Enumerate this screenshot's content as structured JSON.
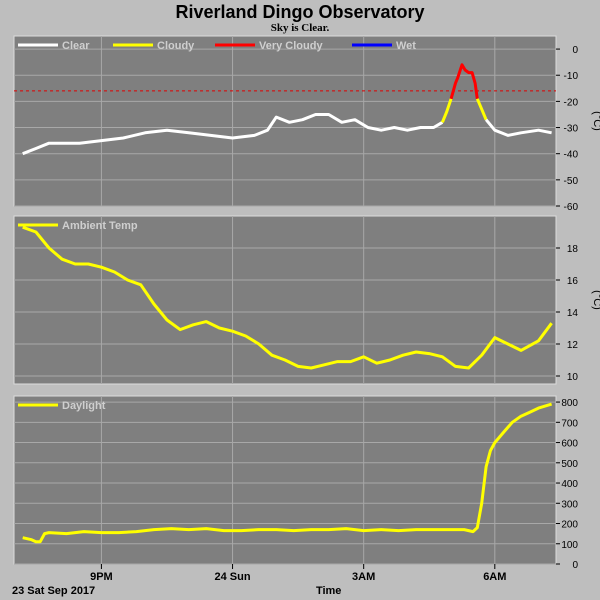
{
  "title": "Riverland Dingo Observatory",
  "subtitle": "Sky is Clear.",
  "xaxis": {
    "label": "Time",
    "date_label": "23 Sat Sep 2017",
    "ticks": [
      {
        "label": "9PM",
        "hours": 0
      },
      {
        "label": "24 Sun",
        "hours": 3
      },
      {
        "label": "3AM",
        "hours": 6
      },
      {
        "label": "6AM",
        "hours": 9
      }
    ]
  },
  "colors": {
    "plot_bg": "#7f7f7f",
    "frame_bg": "#bebebe",
    "grid": "#a8a8a8",
    "clear": "#ffffff",
    "cloudy": "#ffff00",
    "very_cloudy": "#ff0000",
    "wet": "#0000ff",
    "threshold": "#e00000"
  },
  "chart_data": [
    {
      "type": "line",
      "legend": [
        {
          "name": "Clear",
          "color": "#ffffff"
        },
        {
          "name": "Cloudy",
          "color": "#ffff00"
        },
        {
          "name": "Very Cloudy",
          "color": "#ff0000"
        },
        {
          "name": "Wet",
          "color": "#0000ff"
        }
      ],
      "unit": "(°C)",
      "ylim": [
        -60,
        5
      ],
      "yticks": [
        0,
        -10,
        -20,
        -30,
        -40,
        -50,
        -60
      ],
      "threshold": -16,
      "grid": true,
      "series": [
        {
          "name": "Clear",
          "color": "#ffffff",
          "x": [
            -1.8,
            -1.5,
            -1.2,
            -0.9,
            -0.5,
            0,
            0.5,
            1,
            1.5,
            2,
            2.5,
            3,
            3.5,
            3.8,
            4.0,
            4.3,
            4.6,
            4.9,
            5.2,
            5.5,
            5.8,
            6.1,
            6.4,
            6.7,
            7.0,
            7.3,
            7.6,
            7.8
          ],
          "y": [
            -40,
            -38,
            -36,
            -36,
            -36,
            -35,
            -34,
            -32,
            -31,
            -32,
            -33,
            -34,
            -33,
            -31,
            -26,
            -28,
            -27,
            -25,
            -25,
            -28,
            -27,
            -30,
            -31,
            -30,
            -31,
            -30,
            -30,
            -28
          ]
        },
        {
          "name": "Cloudy",
          "color": "#ffff00",
          "x": [
            7.8,
            7.9,
            8.0
          ],
          "y": [
            -28,
            -24,
            -19
          ]
        },
        {
          "name": "Very Cloudy",
          "color": "#ff0000",
          "x": [
            8.0,
            8.1,
            8.15,
            8.25,
            8.32,
            8.4,
            8.48,
            8.55,
            8.6
          ],
          "y": [
            -19,
            -13,
            -11,
            -6,
            -8,
            -9,
            -9,
            -13,
            -19
          ]
        },
        {
          "name": "Cloudy",
          "color": "#ffff00",
          "x": [
            8.6,
            8.7,
            8.8
          ],
          "y": [
            -19,
            -23,
            -27
          ]
        },
        {
          "name": "Clear",
          "color": "#ffffff",
          "x": [
            8.8,
            9.0,
            9.3,
            9.6,
            10.0,
            10.3
          ],
          "y": [
            -27,
            -31,
            -33,
            -32,
            -31,
            -32
          ]
        }
      ]
    },
    {
      "type": "line",
      "legend": [
        {
          "name": "Ambient Temp",
          "color": "#ffff00"
        }
      ],
      "unit": "(°C)",
      "ylim": [
        9.5,
        20
      ],
      "yticks": [
        10,
        12,
        14,
        16,
        18
      ],
      "grid": true,
      "series": [
        {
          "name": "Ambient Temp",
          "color": "#ffff00",
          "x": [
            -1.8,
            -1.5,
            -1.2,
            -0.9,
            -0.6,
            -0.3,
            0,
            0.3,
            0.6,
            0.9,
            1.2,
            1.5,
            1.8,
            2.1,
            2.4,
            2.7,
            3.0,
            3.3,
            3.6,
            3.9,
            4.2,
            4.5,
            4.8,
            5.1,
            5.4,
            5.7,
            6.0,
            6.3,
            6.6,
            6.9,
            7.2,
            7.5,
            7.8,
            8.1,
            8.4,
            8.7,
            9.0,
            9.3,
            9.6,
            10.0,
            10.3
          ],
          "y": [
            19.3,
            19.0,
            18.0,
            17.3,
            17.0,
            17.0,
            16.8,
            16.5,
            16.0,
            15.7,
            14.5,
            13.5,
            12.9,
            13.2,
            13.4,
            13.0,
            12.8,
            12.5,
            12.0,
            11.3,
            11.0,
            10.6,
            10.5,
            10.7,
            10.9,
            10.9,
            11.2,
            10.8,
            11.0,
            11.3,
            11.5,
            11.4,
            11.2,
            10.6,
            10.5,
            11.3,
            12.4,
            12.0,
            11.6,
            12.2,
            13.3
          ]
        }
      ]
    },
    {
      "type": "line",
      "legend": [
        {
          "name": "Daylight",
          "color": "#ffff00"
        }
      ],
      "unit": "",
      "ylim": [
        0,
        830
      ],
      "yticks": [
        0,
        100,
        200,
        300,
        400,
        500,
        600,
        700,
        800
      ],
      "grid": true,
      "series": [
        {
          "name": "Daylight",
          "color": "#ffff00",
          "x": [
            -1.8,
            -1.6,
            -1.5,
            -1.4,
            -1.3,
            -1.2,
            -0.8,
            -0.4,
            0,
            0.4,
            0.8,
            1.2,
            1.6,
            2.0,
            2.4,
            2.8,
            3.2,
            3.6,
            4.0,
            4.4,
            4.8,
            5.2,
            5.6,
            6.0,
            6.4,
            6.8,
            7.2,
            7.6,
            8.0,
            8.3,
            8.5,
            8.6,
            8.7,
            8.8,
            8.9,
            9.0,
            9.2,
            9.4,
            9.6,
            9.8,
            10.0,
            10.3
          ],
          "y": [
            130,
            120,
            110,
            110,
            150,
            155,
            150,
            160,
            155,
            155,
            160,
            170,
            175,
            170,
            175,
            165,
            165,
            170,
            170,
            165,
            170,
            170,
            175,
            165,
            170,
            165,
            170,
            170,
            170,
            170,
            160,
            180,
            300,
            480,
            560,
            600,
            650,
            700,
            730,
            750,
            770,
            790
          ]
        }
      ]
    }
  ],
  "panel_xlim": [
    -2.0,
    10.4
  ]
}
